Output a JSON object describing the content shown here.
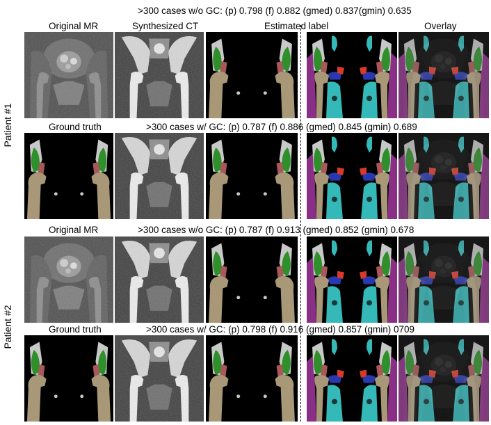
{
  "row_labels": {
    "patient1": "Patient #1",
    "patient2": "Patient #2"
  },
  "column_headers": {
    "original_mr": "Original MR",
    "synthesized_ct": "Synthesized CT",
    "estimated_label": "Estimated label",
    "overlay": "Overlay"
  },
  "patient1": {
    "wo_gc_metrics": ">300 cases w/o GC:  (p) 0.798 (f) 0.882 (gmed) 0.837(gmin) 0.635",
    "ground_truth_label": "Ground truth",
    "w_gc_metrics": ">300 cases w/ GC: (p) 0.787 (f) 0.886 (gmed) 0.845 (gmin) 0.689"
  },
  "patient2": {
    "original_mr_label": "Original MR",
    "wo_gc_metrics": ">300 cases w/o GC:  (p) 0.787 (f) 0.913 (gmed) 0.852 (gmin) 0.678",
    "ground_truth_label": "Ground truth",
    "w_gc_metrics": ">300 cases w/ GC: (p) 0.798 (f) 0.916 (gmed) 0.857 (gmin) 0709"
  },
  "colors": {
    "background": "#000000",
    "femur": "#a89878",
    "pelvis": "#c8c8c8",
    "gluteus_medius": "#2f8f2a",
    "gluteus_minimus": "#a85858",
    "iliacus": "#34b8b8",
    "obturator": "#2838b0",
    "piriformis": "#d83a2a",
    "other_muscle": "#8a2f86"
  },
  "panel_types": {
    "mr": "MR image",
    "ct": "CT image",
    "label_a": "Four-class label",
    "label_b": "Multi-class label",
    "overlay": "Overlay image"
  }
}
